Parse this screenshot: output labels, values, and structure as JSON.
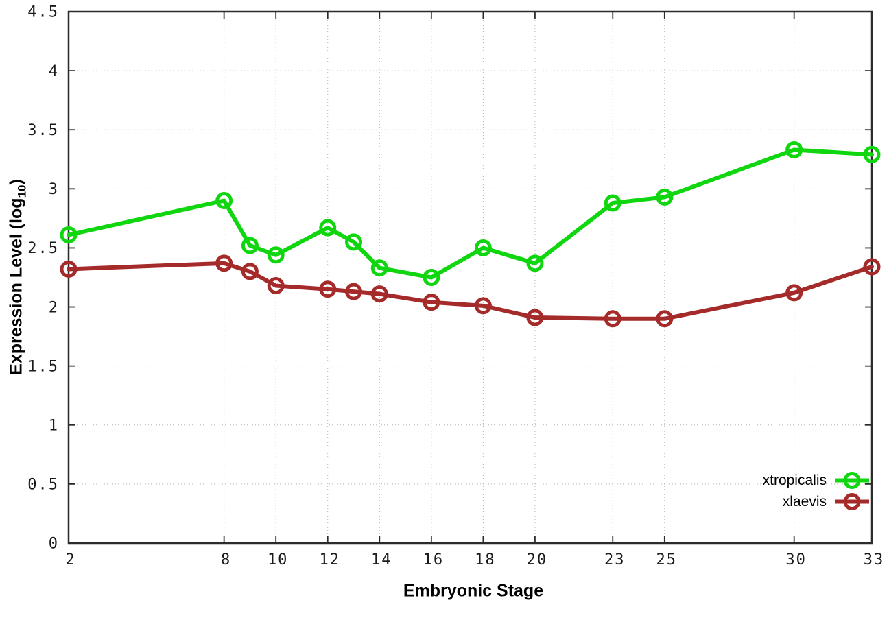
{
  "chart_data": {
    "type": "line",
    "title": "",
    "xlabel": "Embryonic Stage",
    "ylabel": "Expression Level (log10)",
    "ylabel_parts": {
      "prefix": "Expression Level (log",
      "sub": "10",
      "suffix": ")"
    },
    "xlim": [
      2,
      33
    ],
    "ylim": [
      0,
      4.5
    ],
    "grid": true,
    "legend_position": "bottom-right",
    "x": [
      2,
      8,
      9,
      10,
      12,
      13,
      14,
      16,
      18,
      20,
      23,
      25,
      30,
      33
    ],
    "xticks": [
      2,
      8,
      10,
      12,
      14,
      16,
      18,
      20,
      23,
      25,
      30,
      33
    ],
    "xtick_labels": [
      "2",
      "8",
      "10",
      "12",
      "14",
      "16",
      "18",
      "20",
      "23",
      "25",
      "30",
      "33"
    ],
    "yticks": [
      0,
      0.5,
      1,
      1.5,
      2,
      2.5,
      3,
      3.5,
      4,
      4.5
    ],
    "ytick_labels": [
      "0",
      "0.5",
      "1",
      "1.5",
      "2",
      "2.5",
      "3",
      "3.5",
      "4",
      "4.5"
    ],
    "series": [
      {
        "name": "xtropicalis",
        "color": "#0fd60f",
        "values": [
          2.61,
          2.9,
          2.52,
          2.44,
          2.67,
          2.55,
          2.33,
          2.25,
          2.5,
          2.37,
          2.88,
          2.93,
          3.33,
          3.29
        ]
      },
      {
        "name": "xlaevis",
        "color": "#a52a2a",
        "values": [
          2.32,
          2.37,
          2.3,
          2.18,
          2.15,
          2.13,
          2.11,
          2.04,
          2.01,
          1.91,
          1.9,
          1.9,
          2.12,
          2.34
        ]
      }
    ]
  }
}
